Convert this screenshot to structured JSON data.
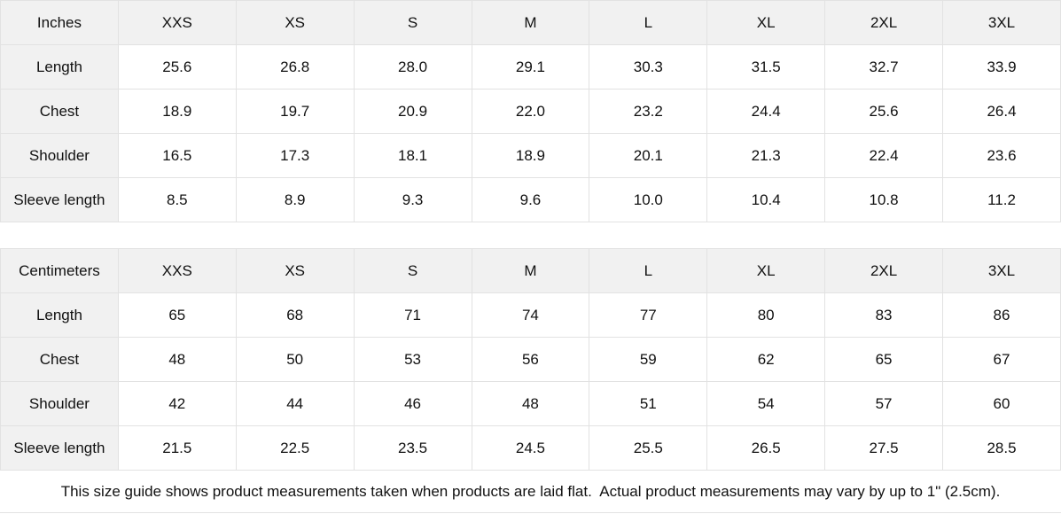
{
  "colors": {
    "header_bg": "#f1f1f1",
    "border": "#e2e2e2",
    "text": "#111111",
    "background": "#ffffff"
  },
  "tables": [
    {
      "unit_label": "Inches",
      "sizes": [
        "XXS",
        "XS",
        "S",
        "M",
        "L",
        "XL",
        "2XL",
        "3XL"
      ],
      "rows": [
        {
          "label": "Length",
          "values": [
            "25.6",
            "26.8",
            "28.0",
            "29.1",
            "30.3",
            "31.5",
            "32.7",
            "33.9"
          ]
        },
        {
          "label": "Chest",
          "values": [
            "18.9",
            "19.7",
            "20.9",
            "22.0",
            "23.2",
            "24.4",
            "25.6",
            "26.4"
          ]
        },
        {
          "label": "Shoulder",
          "values": [
            "16.5",
            "17.3",
            "18.1",
            "18.9",
            "20.1",
            "21.3",
            "22.4",
            "23.6"
          ]
        },
        {
          "label": "Sleeve length",
          "values": [
            "8.5",
            "8.9",
            "9.3",
            "9.6",
            "10.0",
            "10.4",
            "10.8",
            "11.2"
          ]
        }
      ]
    },
    {
      "unit_label": "Centimeters",
      "sizes": [
        "XXS",
        "XS",
        "S",
        "M",
        "L",
        "XL",
        "2XL",
        "3XL"
      ],
      "rows": [
        {
          "label": "Length",
          "values": [
            "65",
            "68",
            "71",
            "74",
            "77",
            "80",
            "83",
            "86"
          ]
        },
        {
          "label": "Chest",
          "values": [
            "48",
            "50",
            "53",
            "56",
            "59",
            "62",
            "65",
            "67"
          ]
        },
        {
          "label": "Shoulder",
          "values": [
            "42",
            "44",
            "46",
            "48",
            "51",
            "54",
            "57",
            "60"
          ]
        },
        {
          "label": "Sleeve length",
          "values": [
            "21.5",
            "22.5",
            "23.5",
            "24.5",
            "25.5",
            "26.5",
            "27.5",
            "28.5"
          ]
        }
      ]
    }
  ],
  "footer": {
    "note": "This size guide shows product measurements taken when products are laid flat.  Actual product measurements may vary by up to 1\" (2.5cm)."
  }
}
